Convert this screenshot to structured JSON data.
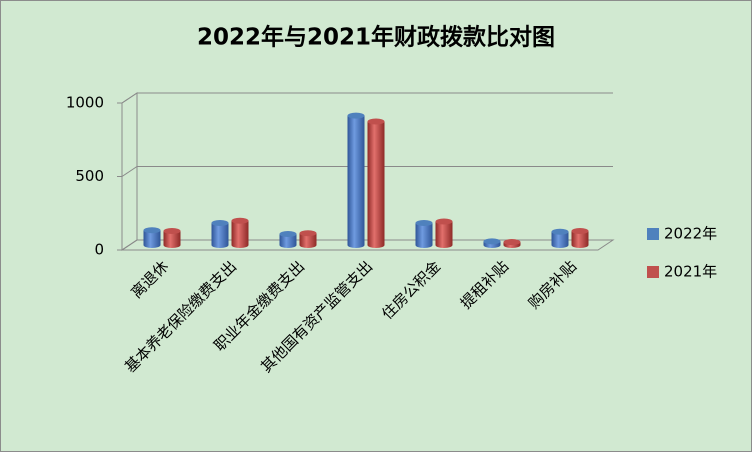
{
  "chart_data": {
    "type": "bar",
    "title": "2022年与2021年财政拨款比对图",
    "categories": [
      "离退休",
      "基本养老保险缴费支出",
      "职业年金缴费支出",
      "其他国有资产监管支出",
      "住房公积金",
      "提租补贴",
      "购房补贴"
    ],
    "series": [
      {
        "name": "2022年",
        "color": "#4f81bd",
        "values": [
          100,
          150,
          75,
          880,
          150,
          25,
          90
        ]
      },
      {
        "name": "2021年",
        "color": "#c0504d",
        "values": [
          95,
          165,
          80,
          840,
          160,
          20,
          95
        ]
      }
    ],
    "ylim": [
      0,
      1000
    ],
    "yticks": [
      0,
      500,
      1000
    ],
    "grid": true,
    "legend": "right"
  }
}
